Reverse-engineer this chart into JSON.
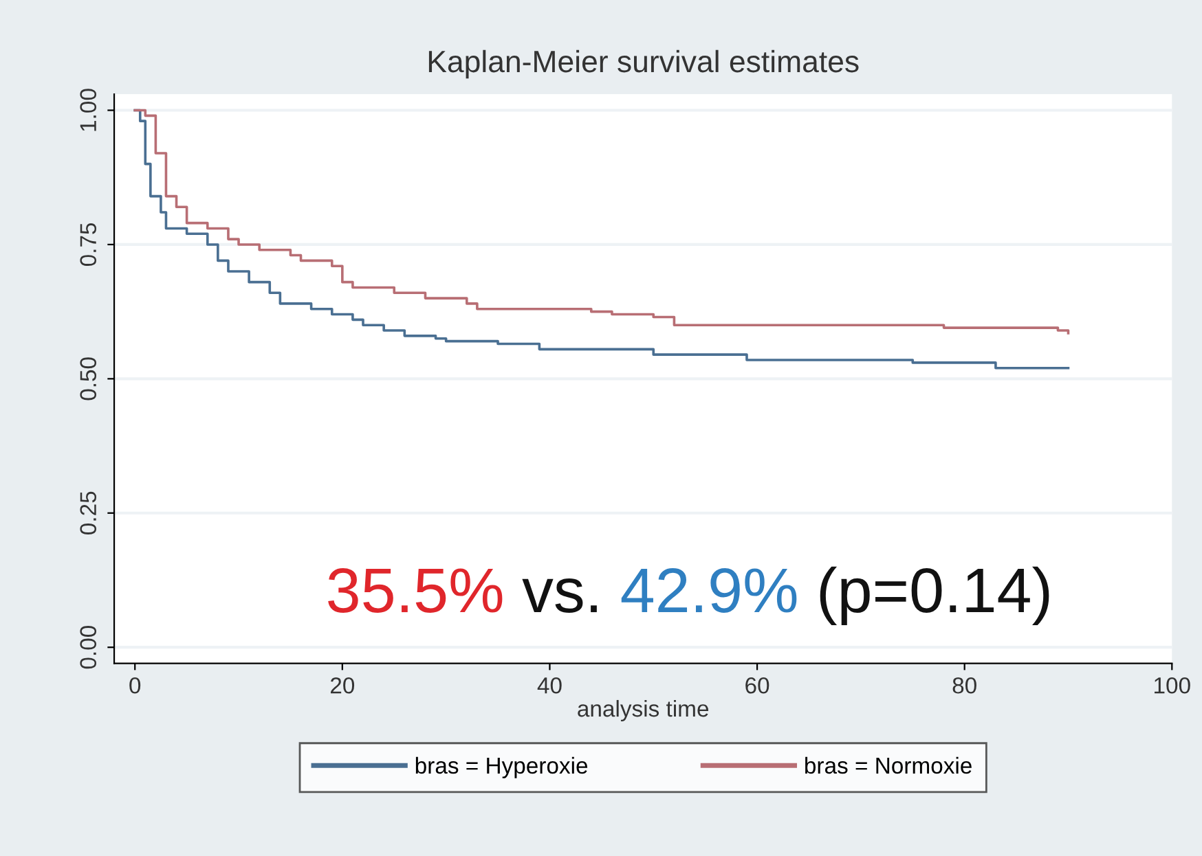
{
  "chart_data": {
    "type": "step",
    "title": "Kaplan-Meier survival estimates",
    "xlabel": "analysis time",
    "series": [
      {
        "name": "bras = Hyperoxie",
        "color": "#4a6f92",
        "x": [
          0,
          0.5,
          1,
          1.5,
          2.5,
          3,
          5,
          7,
          8,
          9,
          11,
          13,
          14,
          17,
          19,
          21,
          22,
          24,
          26,
          29,
          30,
          35,
          39,
          50,
          59,
          75,
          83,
          90
        ],
        "values": [
          1.0,
          0.98,
          0.9,
          0.84,
          0.81,
          0.78,
          0.77,
          0.75,
          0.72,
          0.7,
          0.68,
          0.66,
          0.64,
          0.63,
          0.62,
          0.61,
          0.6,
          0.59,
          0.58,
          0.575,
          0.57,
          0.565,
          0.555,
          0.545,
          0.535,
          0.53,
          0.52,
          0.52
        ]
      },
      {
        "name": "bras = Normoxie",
        "color": "#b86e74",
        "x": [
          0,
          1,
          2,
          3,
          4,
          5,
          7,
          9,
          10,
          12,
          15,
          16,
          19,
          20,
          21,
          25,
          28,
          32,
          33,
          44,
          46,
          50,
          52,
          78,
          89,
          90
        ],
        "values": [
          1.0,
          0.99,
          0.92,
          0.84,
          0.82,
          0.79,
          0.78,
          0.76,
          0.75,
          0.74,
          0.73,
          0.72,
          0.71,
          0.68,
          0.67,
          0.66,
          0.65,
          0.64,
          0.63,
          0.625,
          0.62,
          0.615,
          0.6,
          0.595,
          0.59,
          0.585
        ]
      }
    ],
    "xlim": [
      -2,
      100
    ],
    "xticks": [
      0,
      20,
      40,
      60,
      80,
      100
    ],
    "ylim": [
      -0.03,
      1.03
    ],
    "yticks": [
      {
        "value": 0,
        "label": "0.00"
      },
      {
        "value": 0.25,
        "label": "0.25"
      },
      {
        "value": 0.5,
        "label": "0.50"
      },
      {
        "value": 0.75,
        "label": "0.75"
      },
      {
        "value": 1,
        "label": "1.00"
      }
    ],
    "grid": "y",
    "legend": "bottom",
    "annotations": [
      "35.5%",
      "vs.",
      "42.9%",
      "(p=0.14)"
    ]
  }
}
